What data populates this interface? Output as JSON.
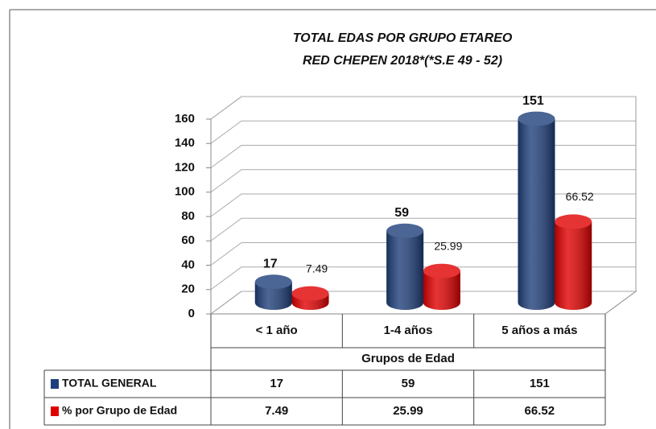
{
  "chart_data": {
    "type": "bar3d",
    "title": "TOTAL EDAS POR GRUPO ETAREO",
    "subtitle": "RED CHEPEN 2018*(*S.E 49 - 52)",
    "x_label": "Grupos de Edad",
    "categories": [
      "< 1 año",
      "1-4 años",
      "5 años a más"
    ],
    "series": [
      {
        "name": "TOTAL GENERAL",
        "color": "#1f3f7a",
        "values": [
          17,
          59,
          151
        ]
      },
      {
        "name": "% por Grupo de Edad",
        "color": "#e00000",
        "values": [
          7.49,
          25.99,
          66.52
        ]
      }
    ],
    "ylim": [
      0,
      160
    ],
    "yticks": [
      0,
      20,
      40,
      60,
      80,
      100,
      120,
      140,
      160
    ],
    "grid": true,
    "data_table": true
  }
}
